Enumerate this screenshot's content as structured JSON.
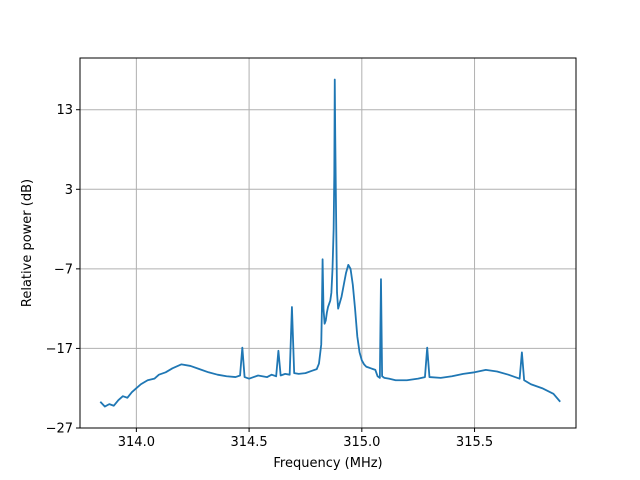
{
  "chart_data": {
    "type": "line",
    "title": "",
    "xlabel": "Frequency (MHz)",
    "ylabel": "Relative power (dB)",
    "xlim": [
      313.75,
      315.95
    ],
    "ylim": [
      -27,
      19.5
    ],
    "xticks": [
      314.0,
      314.5,
      315.0,
      315.5
    ],
    "xtick_labels": [
      "314.0",
      "314.5",
      "315.0",
      "315.5"
    ],
    "yticks": [
      -27,
      -17,
      -7,
      3,
      13
    ],
    "ytick_labels": [
      "−27",
      "−17",
      "−7",
      "3",
      "13"
    ],
    "grid": true,
    "legend": null,
    "series": [
      {
        "color": "#1f77b4",
        "x": [
          313.84,
          313.86,
          313.88,
          313.9,
          313.92,
          313.94,
          313.96,
          313.98,
          314.0,
          314.02,
          314.05,
          314.08,
          314.1,
          314.13,
          314.16,
          314.2,
          314.24,
          314.28,
          314.32,
          314.36,
          314.4,
          314.44,
          314.46,
          314.47,
          314.48,
          314.5,
          314.54,
          314.58,
          314.6,
          314.62,
          314.63,
          314.64,
          314.66,
          314.68,
          314.69,
          314.7,
          314.72,
          314.75,
          314.78,
          314.8,
          314.81,
          314.82,
          314.823,
          314.826,
          314.83,
          314.835,
          314.84,
          314.845,
          314.85,
          314.86,
          314.865,
          314.87,
          314.875,
          314.878,
          314.88,
          314.882,
          314.885,
          314.89,
          314.895,
          314.9,
          314.91,
          314.92,
          314.93,
          314.94,
          314.95,
          314.96,
          314.97,
          314.98,
          314.99,
          315.0,
          315.01,
          315.02,
          315.03,
          315.04,
          315.05,
          315.06,
          315.07,
          315.08,
          315.085,
          315.09,
          315.1,
          315.12,
          315.15,
          315.2,
          315.25,
          315.28,
          315.29,
          315.3,
          315.35,
          315.4,
          315.45,
          315.5,
          315.55,
          315.6,
          315.65,
          315.7,
          315.71,
          315.72,
          315.75,
          315.8,
          315.85,
          315.88
        ],
        "y": [
          -23.7,
          -24.3,
          -24.0,
          -24.2,
          -23.5,
          -23.0,
          -23.2,
          -22.5,
          -22.0,
          -21.5,
          -21.0,
          -20.8,
          -20.3,
          -20.0,
          -19.5,
          -19.0,
          -19.2,
          -19.6,
          -20.0,
          -20.3,
          -20.5,
          -20.6,
          -20.4,
          -16.9,
          -20.6,
          -20.8,
          -20.4,
          -20.6,
          -20.3,
          -20.5,
          -17.3,
          -20.4,
          -20.2,
          -20.3,
          -11.8,
          -20.1,
          -20.2,
          -20.1,
          -19.8,
          -19.6,
          -18.9,
          -16.5,
          -12.0,
          -5.8,
          -12.0,
          -13.9,
          -13.5,
          -12.5,
          -11.8,
          -11.0,
          -10.0,
          -7.0,
          -2.0,
          5.0,
          16.8,
          10.0,
          2.0,
          -10.0,
          -12.0,
          -11.5,
          -10.5,
          -9.0,
          -7.5,
          -6.5,
          -7.0,
          -9.0,
          -12.0,
          -15.5,
          -17.5,
          -18.5,
          -19.0,
          -19.3,
          -19.4,
          -19.5,
          -19.6,
          -19.7,
          -20.5,
          -20.7,
          -8.3,
          -20.5,
          -20.7,
          -20.8,
          -21.0,
          -21.0,
          -20.8,
          -20.6,
          -16.9,
          -20.6,
          -20.7,
          -20.5,
          -20.2,
          -20.0,
          -19.7,
          -19.9,
          -20.3,
          -20.8,
          -17.5,
          -21.0,
          -21.5,
          -22.0,
          -22.7,
          -23.7
        ]
      }
    ]
  }
}
